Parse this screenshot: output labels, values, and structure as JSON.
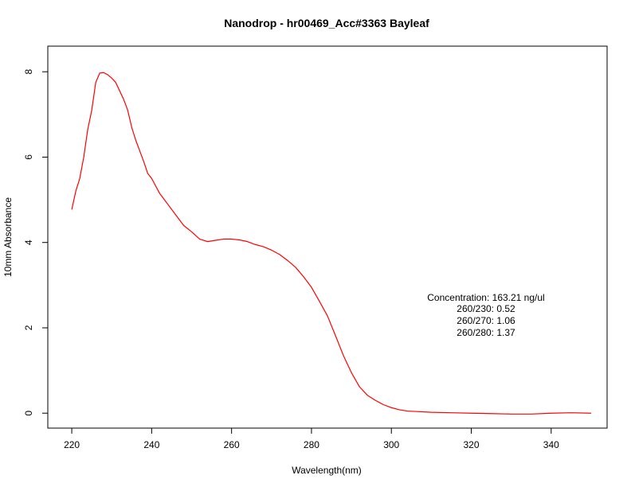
{
  "chart_data": {
    "type": "line",
    "title": "Nanodrop - hr00469_Acc#3363 Bayleaf",
    "xlabel": "Wavelength(nm)",
    "ylabel": "10mm Absorbance",
    "xlim": [
      214,
      354
    ],
    "ylim": [
      -0.35,
      8.6
    ],
    "x_ticks": [
      220,
      240,
      260,
      280,
      300,
      320,
      340
    ],
    "y_ticks": [
      0,
      2,
      4,
      6,
      8
    ],
    "grid": false,
    "series": [
      {
        "color": "#ff0000",
        "x": [
          220,
          221,
          222,
          223,
          224,
          225,
          226,
          227,
          228,
          229,
          230,
          231,
          232,
          233,
          234,
          235,
          236,
          237,
          238,
          239,
          240,
          242,
          244,
          246,
          248,
          250,
          252,
          254,
          256,
          258,
          260,
          262,
          264,
          266,
          268,
          270,
          272,
          274,
          276,
          278,
          280,
          282,
          284,
          286,
          288,
          290,
          292,
          294,
          296,
          298,
          300,
          302,
          304,
          306,
          310,
          315,
          320,
          325,
          330,
          335,
          340,
          345,
          350
        ],
        "y": [
          4.77,
          5.2,
          5.5,
          6.0,
          6.65,
          7.1,
          7.75,
          7.97,
          7.98,
          7.93,
          7.85,
          7.75,
          7.55,
          7.35,
          7.1,
          6.7,
          6.4,
          6.15,
          5.9,
          5.62,
          5.5,
          5.15,
          4.9,
          4.65,
          4.4,
          4.25,
          4.08,
          4.02,
          4.05,
          4.08,
          4.08,
          4.06,
          4.02,
          3.95,
          3.9,
          3.82,
          3.72,
          3.58,
          3.42,
          3.2,
          2.95,
          2.62,
          2.28,
          1.82,
          1.35,
          0.95,
          0.62,
          0.42,
          0.3,
          0.2,
          0.13,
          0.08,
          0.05,
          0.04,
          0.02,
          0.01,
          0.0,
          -0.01,
          -0.02,
          -0.02,
          0.0,
          0.01,
          0.0
        ]
      }
    ],
    "annotations": [
      "Concentration: 163.21 ng/ul",
      "260/230: 0.52",
      "260/270: 1.06",
      "260/280: 1.37"
    ]
  }
}
